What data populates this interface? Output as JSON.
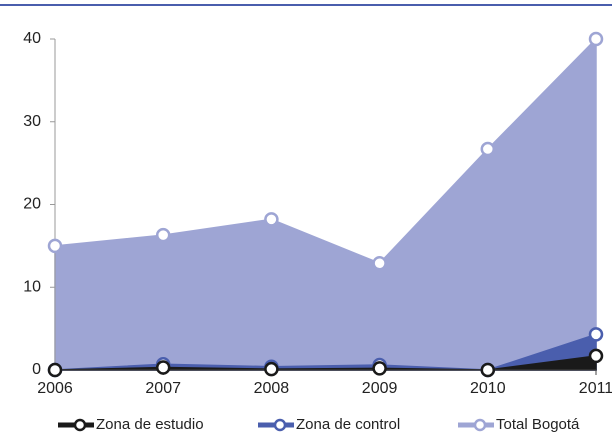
{
  "chart_data": {
    "type": "area",
    "x": [
      2006,
      2007,
      2008,
      2009,
      2010,
      2011
    ],
    "xlim": [
      2006,
      2011
    ],
    "xticks": [
      2006,
      2007,
      2008,
      2009,
      2010,
      2011
    ],
    "ylim": [
      0,
      40
    ],
    "yticks": [
      0,
      10,
      20,
      30,
      40
    ],
    "legend": "bottom",
    "series": [
      {
        "name": "Total Bogotá",
        "color": "#9ea5d4",
        "values": [
          15,
          16.3,
          18.2,
          12.9,
          26.7,
          40
        ]
      },
      {
        "name": "Zona de control",
        "color": "#4a5ead",
        "values": [
          0,
          0.7,
          0.4,
          0.6,
          0,
          4.3
        ]
      },
      {
        "name": "Zona de estudio",
        "color": "#1a1a1a",
        "values": [
          0,
          0.3,
          0.1,
          0.2,
          0,
          1.7
        ]
      }
    ]
  }
}
